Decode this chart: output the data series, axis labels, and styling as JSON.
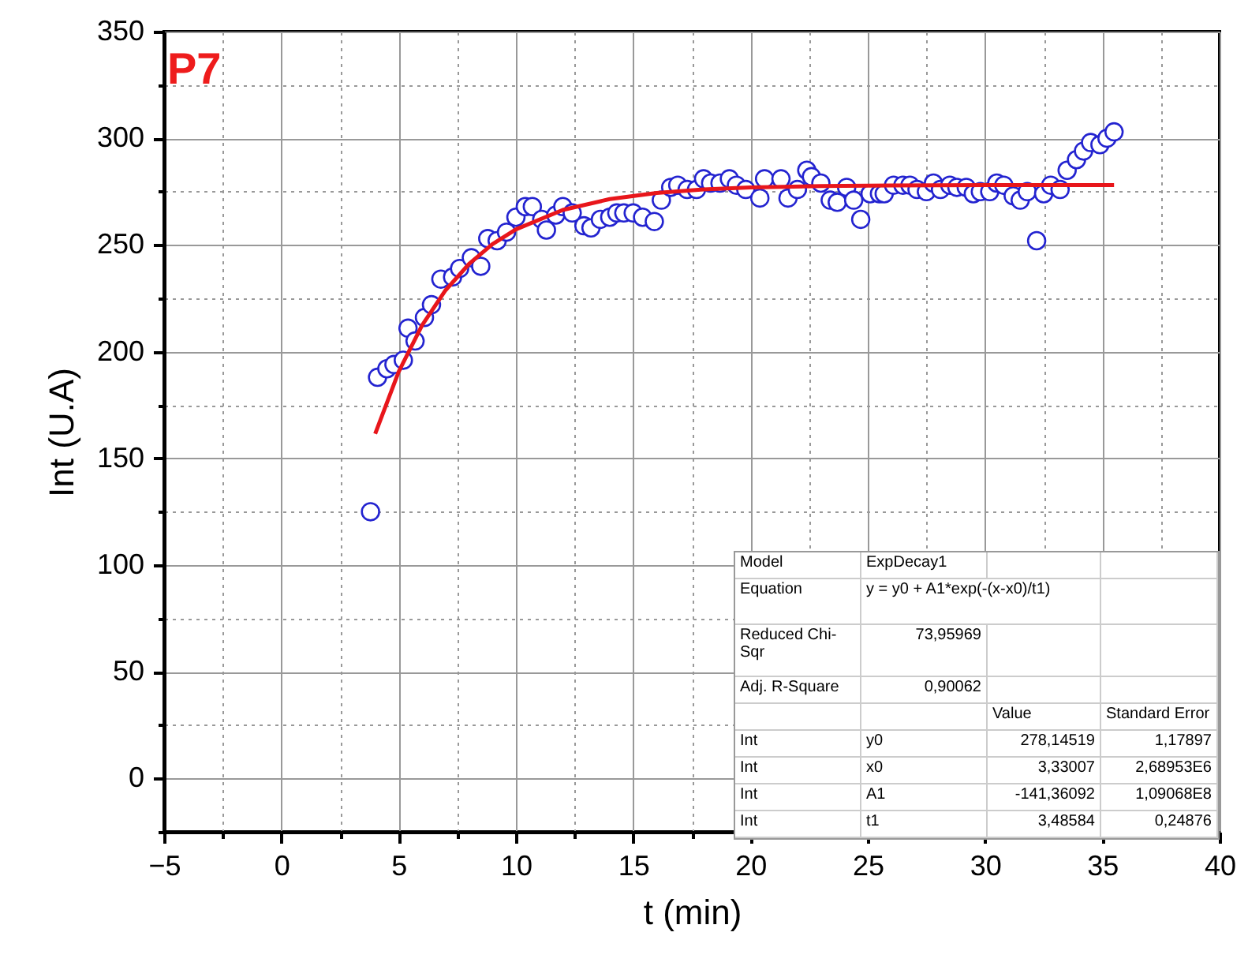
{
  "chart_data": {
    "type": "scatter",
    "xlabel": "t (min)",
    "ylabel": "Int (U.A)",
    "xlim": [
      -5,
      40
    ],
    "xticks": [
      -5,
      {
        "value": -2.5,
        "label": null
      },
      0,
      {
        "value": 2.5,
        "label": null
      },
      5,
      {
        "value": 7.5,
        "label": null
      },
      10,
      {
        "value": 12.5,
        "label": null
      },
      15,
      {
        "value": 17.5,
        "label": null
      },
      20,
      {
        "value": 22.5,
        "label": null
      },
      25,
      {
        "value": 27.5,
        "label": null
      },
      30,
      {
        "value": 32.5,
        "label": null
      },
      35,
      {
        "value": 37.5,
        "label": null
      },
      40
    ],
    "ylim": [
      -25,
      350
    ],
    "yticks": [
      {
        "value": -25,
        "label": null
      },
      0,
      {
        "value": 25,
        "label": null
      },
      50,
      {
        "value": 75,
        "label": null
      },
      100,
      {
        "value": 125,
        "label": null
      },
      150,
      {
        "value": 175,
        "label": null
      },
      200,
      {
        "value": 225,
        "label": null
      },
      250,
      {
        "value": 275,
        "label": null
      },
      300,
      {
        "value": 325,
        "label": null
      },
      350
    ],
    "grid": true,
    "series": [
      {
        "marker": "circle",
        "color": "#2323d0",
        "x": [
          3.8,
          4.1,
          4.5,
          4.8,
          5.2,
          5.4,
          5.7,
          6.1,
          6.4,
          6.8,
          7.3,
          7.6,
          8.1,
          8.5,
          8.8,
          9.2,
          9.6,
          10.0,
          10.4,
          10.7,
          11.1,
          11.3,
          11.7,
          12.0,
          12.4,
          12.9,
          13.2,
          13.6,
          14.0,
          14.3,
          14.6,
          15.0,
          15.4,
          15.9,
          16.2,
          16.6,
          16.9,
          17.3,
          17.7,
          18.0,
          18.3,
          18.7,
          19.1,
          19.4,
          19.8,
          20.4,
          20.6,
          21.3,
          21.6,
          22.0,
          22.4,
          22.6,
          23.0,
          23.4,
          23.7,
          24.1,
          24.4,
          24.7,
          25.1,
          25.5,
          25.7,
          26.1,
          26.5,
          26.8,
          27.1,
          27.5,
          27.8,
          28.1,
          28.5,
          28.8,
          29.2,
          29.5,
          29.8,
          30.2,
          30.5,
          30.8,
          31.2,
          31.5,
          31.8,
          32.2,
          32.5,
          32.8,
          33.2,
          33.5,
          33.9,
          34.2,
          34.5,
          34.9,
          35.2,
          35.5
        ],
        "values": [
          125,
          188,
          192,
          194,
          196,
          211,
          205,
          216,
          222,
          234,
          235,
          239,
          244,
          240,
          253,
          252,
          256,
          263,
          268,
          268,
          262,
          257,
          264,
          268,
          265,
          259,
          258,
          262,
          263,
          265,
          265,
          265,
          263,
          261,
          271,
          277,
          278,
          276,
          276,
          281,
          279,
          279,
          281,
          278,
          276,
          272,
          281,
          281,
          272,
          276,
          285,
          282,
          279,
          271,
          270,
          277,
          271,
          262,
          274,
          274,
          274,
          278,
          278,
          278,
          276,
          275,
          279,
          276,
          278,
          277,
          277,
          274,
          275,
          275,
          279,
          278,
          273,
          271,
          275,
          252,
          274,
          278,
          276,
          285,
          290,
          294,
          298,
          297,
          300,
          303
        ]
      },
      {
        "type": "line",
        "marker": "none",
        "line_style": "solid",
        "color": "#e8161b",
        "x": [
          4,
          5,
          6,
          7,
          8,
          9,
          10,
          12,
          14,
          16,
          18,
          20,
          23,
          26,
          30,
          35.5
        ],
        "values": [
          161.5,
          190.6,
          212.4,
          228.8,
          241.1,
          250.4,
          257.3,
          266.4,
          271.5,
          274.4,
          276.0,
          277.0,
          277.6,
          277.9,
          278.1,
          278.1
        ]
      }
    ],
    "annotations": [
      "P7",
      "Model",
      "ExpDecay1",
      "Equation",
      "y = y0 + A1*exp(-(x-x0)/t1)",
      "Reduced Chi-Sqr",
      "73,95969",
      "Adj. R-Square",
      "0,90062",
      "Value",
      "Standard Error",
      "Int",
      "y0",
      "278,14519",
      "1,17897",
      "Int",
      "x0",
      "3,33007",
      "2,68953E6",
      "Int",
      "A1",
      "-141,36092",
      "1,09068E8",
      "Int",
      "t1",
      "3,48584",
      "0,24876"
    ]
  }
}
